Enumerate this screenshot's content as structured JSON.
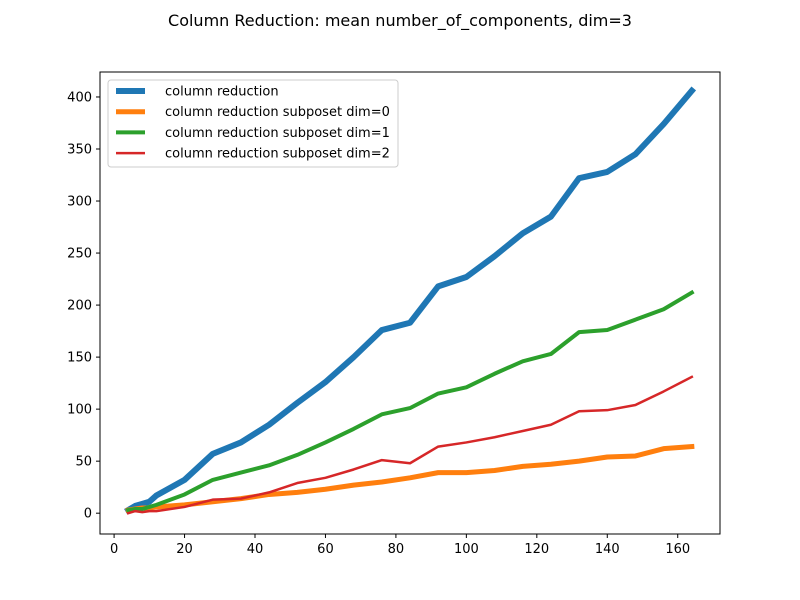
{
  "chart_data": {
    "type": "line",
    "title": "Column Reduction: mean number_of_components, dim=3",
    "xlabel": "",
    "ylabel": "",
    "xlim": [
      -4,
      172
    ],
    "ylim": [
      -20,
      424
    ],
    "xticks": [
      0,
      20,
      40,
      60,
      80,
      100,
      120,
      140,
      160
    ],
    "yticks": [
      0,
      50,
      100,
      150,
      200,
      250,
      300,
      350,
      400
    ],
    "grid": false,
    "legend": "top-left",
    "x": [
      4,
      6,
      8,
      10,
      12,
      20,
      28,
      36,
      44,
      52,
      60,
      68,
      76,
      84,
      92,
      100,
      108,
      116,
      124,
      132,
      140,
      148,
      156,
      164
    ],
    "series": [
      {
        "name": "column reduction",
        "color": "#1f77b4",
        "values": [
          3,
          7,
          9,
          11,
          17,
          32,
          57,
          68,
          85,
          106,
          126,
          150,
          176,
          183,
          218,
          227,
          247,
          269,
          285,
          322,
          328,
          345,
          374,
          406
        ]
      },
      {
        "name": "column reduction subposet dim=0",
        "color": "#ff7f0e",
        "values": [
          3,
          4,
          5,
          5,
          6,
          8,
          11,
          14,
          18,
          20,
          23,
          27,
          30,
          34,
          39,
          39,
          41,
          45,
          47,
          50,
          54,
          55,
          62,
          64
        ]
      },
      {
        "name": "column reduction subposet dim=1",
        "color": "#2ca02c",
        "values": [
          3,
          4,
          4,
          6,
          8,
          18,
          32,
          39,
          46,
          56,
          68,
          81,
          95,
          101,
          115,
          121,
          134,
          146,
          153,
          174,
          176,
          186,
          196,
          212
        ]
      },
      {
        "name": "column reduction subposet dim=2",
        "color": "#d62728",
        "values": [
          0,
          2,
          1,
          2,
          2,
          6,
          13,
          14,
          20,
          29,
          34,
          42,
          51,
          48,
          64,
          68,
          73,
          79,
          85,
          98,
          99,
          104,
          117,
          131
        ]
      }
    ]
  }
}
